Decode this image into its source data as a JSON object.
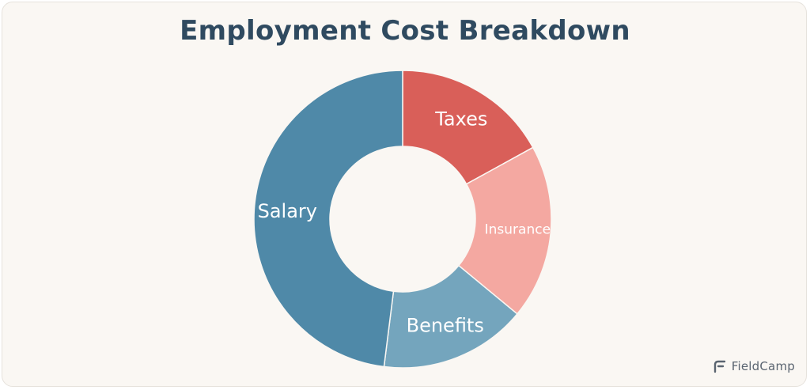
{
  "chart_data": {
    "type": "pie",
    "title": "Employment Cost Breakdown",
    "categories": [
      "Taxes",
      "Insurance",
      "Benefits",
      "Salary"
    ],
    "values": [
      17,
      19,
      16,
      48
    ],
    "colors": [
      "#d95f59",
      "#f4a8a1",
      "#74a5bd",
      "#4f89a8"
    ],
    "donut": true
  },
  "brand": {
    "name": "FieldCamp",
    "icon": "fieldcamp-logo-icon"
  }
}
